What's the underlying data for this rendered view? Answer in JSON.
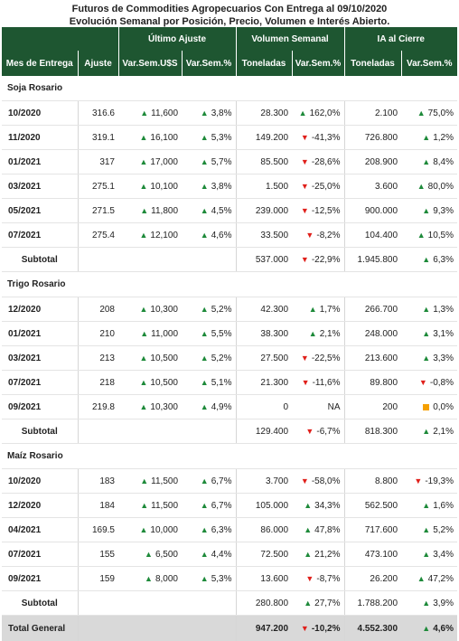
{
  "title": {
    "line1": "Futuros de Commodities Agropecuarios Con Entrega al 09/10/2020",
    "line2": "Evolución Semanal por Posición, Precio, Volumen e Interés Abierto."
  },
  "groups": {
    "ultimo_ajuste": "Último Ajuste",
    "volumen_semanal": "Volumen Semanal",
    "ia_cierre": "IA al Cierre"
  },
  "columns": {
    "mes": "Mes de Entrega",
    "ajuste": "Ajuste",
    "var_usd": "Var.Sem.U$S",
    "var_pct1": "Var.Sem.%",
    "toneladas1": "Toneladas",
    "var_pct2": "Var.Sem.%",
    "toneladas2": "Toneladas",
    "var_pct3": "Var.Sem.%"
  },
  "sections": [
    {
      "name": "Soja Rosario",
      "rows": [
        {
          "mes": "10/2020",
          "ajuste": "316.6",
          "var_usd": "11,600",
          "var_usd_dir": "up",
          "var_pct1": "3,8%",
          "var_pct1_dir": "up",
          "ton1": "28.300",
          "var_pct2": "162,0%",
          "var_pct2_dir": "up",
          "ton2": "2.100",
          "var_pct3": "75,0%",
          "var_pct3_dir": "up"
        },
        {
          "mes": "11/2020",
          "ajuste": "319.1",
          "var_usd": "16,100",
          "var_usd_dir": "up",
          "var_pct1": "5,3%",
          "var_pct1_dir": "up",
          "ton1": "149.200",
          "var_pct2": "-41,3%",
          "var_pct2_dir": "down",
          "ton2": "726.800",
          "var_pct3": "1,2%",
          "var_pct3_dir": "up"
        },
        {
          "mes": "01/2021",
          "ajuste": "317",
          "var_usd": "17,000",
          "var_usd_dir": "up",
          "var_pct1": "5,7%",
          "var_pct1_dir": "up",
          "ton1": "85.500",
          "var_pct2": "-28,6%",
          "var_pct2_dir": "down",
          "ton2": "208.900",
          "var_pct3": "8,4%",
          "var_pct3_dir": "up"
        },
        {
          "mes": "03/2021",
          "ajuste": "275.1",
          "var_usd": "10,100",
          "var_usd_dir": "up",
          "var_pct1": "3,8%",
          "var_pct1_dir": "up",
          "ton1": "1.500",
          "var_pct2": "-25,0%",
          "var_pct2_dir": "down",
          "ton2": "3.600",
          "var_pct3": "80,0%",
          "var_pct3_dir": "up"
        },
        {
          "mes": "05/2021",
          "ajuste": "271.5",
          "var_usd": "11,800",
          "var_usd_dir": "up",
          "var_pct1": "4,5%",
          "var_pct1_dir": "up",
          "ton1": "239.000",
          "var_pct2": "-12,5%",
          "var_pct2_dir": "down",
          "ton2": "900.000",
          "var_pct3": "9,3%",
          "var_pct3_dir": "up"
        },
        {
          "mes": "07/2021",
          "ajuste": "275.4",
          "var_usd": "12,100",
          "var_usd_dir": "up",
          "var_pct1": "4,6%",
          "var_pct1_dir": "up",
          "ton1": "33.500",
          "var_pct2": "-8,2%",
          "var_pct2_dir": "down",
          "ton2": "104.400",
          "var_pct3": "10,5%",
          "var_pct3_dir": "up"
        }
      ],
      "subtotal": {
        "label": "Subtotal",
        "ton1": "537.000",
        "var_pct2": "-22,9%",
        "var_pct2_dir": "down",
        "ton2": "1.945.800",
        "var_pct3": "6,3%",
        "var_pct3_dir": "up"
      }
    },
    {
      "name": "Trigo Rosario",
      "rows": [
        {
          "mes": "12/2020",
          "ajuste": "208",
          "var_usd": "10,300",
          "var_usd_dir": "up",
          "var_pct1": "5,2%",
          "var_pct1_dir": "up",
          "ton1": "42.300",
          "var_pct2": "1,7%",
          "var_pct2_dir": "up",
          "ton2": "266.700",
          "var_pct3": "1,3%",
          "var_pct3_dir": "up"
        },
        {
          "mes": "01/2021",
          "ajuste": "210",
          "var_usd": "11,000",
          "var_usd_dir": "up",
          "var_pct1": "5,5%",
          "var_pct1_dir": "up",
          "ton1": "38.300",
          "var_pct2": "2,1%",
          "var_pct2_dir": "up",
          "ton2": "248.000",
          "var_pct3": "3,1%",
          "var_pct3_dir": "up"
        },
        {
          "mes": "03/2021",
          "ajuste": "213",
          "var_usd": "10,500",
          "var_usd_dir": "up",
          "var_pct1": "5,2%",
          "var_pct1_dir": "up",
          "ton1": "27.500",
          "var_pct2": "-22,5%",
          "var_pct2_dir": "down",
          "ton2": "213.600",
          "var_pct3": "3,3%",
          "var_pct3_dir": "up"
        },
        {
          "mes": "07/2021",
          "ajuste": "218",
          "var_usd": "10,500",
          "var_usd_dir": "up",
          "var_pct1": "5,1%",
          "var_pct1_dir": "up",
          "ton1": "21.300",
          "var_pct2": "-11,6%",
          "var_pct2_dir": "down",
          "ton2": "89.800",
          "var_pct3": "-0,8%",
          "var_pct3_dir": "down"
        },
        {
          "mes": "09/2021",
          "ajuste": "219.8",
          "var_usd": "10,300",
          "var_usd_dir": "up",
          "var_pct1": "4,9%",
          "var_pct1_dir": "up",
          "ton1": "0",
          "var_pct2": "NA",
          "var_pct2_dir": "none",
          "ton2": "200",
          "var_pct3": "0,0%",
          "var_pct3_dir": "flat"
        }
      ],
      "subtotal": {
        "label": "Subtotal",
        "ton1": "129.400",
        "var_pct2": "-6,7%",
        "var_pct2_dir": "down",
        "ton2": "818.300",
        "var_pct3": "2,1%",
        "var_pct3_dir": "up"
      }
    },
    {
      "name": "Maíz Rosario",
      "rows": [
        {
          "mes": "10/2020",
          "ajuste": "183",
          "var_usd": "11,500",
          "var_usd_dir": "up",
          "var_pct1": "6,7%",
          "var_pct1_dir": "up",
          "ton1": "3.700",
          "var_pct2": "-58,0%",
          "var_pct2_dir": "down",
          "ton2": "8.800",
          "var_pct3": "-19,3%",
          "var_pct3_dir": "down"
        },
        {
          "mes": "12/2020",
          "ajuste": "184",
          "var_usd": "11,500",
          "var_usd_dir": "up",
          "var_pct1": "6,7%",
          "var_pct1_dir": "up",
          "ton1": "105.000",
          "var_pct2": "34,3%",
          "var_pct2_dir": "up",
          "ton2": "562.500",
          "var_pct3": "1,6%",
          "var_pct3_dir": "up"
        },
        {
          "mes": "04/2021",
          "ajuste": "169.5",
          "var_usd": "10,000",
          "var_usd_dir": "up",
          "var_pct1": "6,3%",
          "var_pct1_dir": "up",
          "ton1": "86.000",
          "var_pct2": "47,8%",
          "var_pct2_dir": "up",
          "ton2": "717.600",
          "var_pct3": "5,2%",
          "var_pct3_dir": "up"
        },
        {
          "mes": "07/2021",
          "ajuste": "155",
          "var_usd": "6,500",
          "var_usd_dir": "up",
          "var_pct1": "4,4%",
          "var_pct1_dir": "up",
          "ton1": "72.500",
          "var_pct2": "21,2%",
          "var_pct2_dir": "up",
          "ton2": "473.100",
          "var_pct3": "3,4%",
          "var_pct3_dir": "up"
        },
        {
          "mes": "09/2021",
          "ajuste": "159",
          "var_usd": "8,000",
          "var_usd_dir": "up",
          "var_pct1": "5,3%",
          "var_pct1_dir": "up",
          "ton1": "13.600",
          "var_pct2": "-8,7%",
          "var_pct2_dir": "down",
          "ton2": "26.200",
          "var_pct3": "47,2%",
          "var_pct3_dir": "up"
        }
      ],
      "subtotal": {
        "label": "Subtotal",
        "ton1": "280.800",
        "var_pct2": "27,7%",
        "var_pct2_dir": "up",
        "ton2": "1.788.200",
        "var_pct3": "3,9%",
        "var_pct3_dir": "up"
      }
    }
  ],
  "total": {
    "label": "Total General",
    "ton1": "947.200",
    "var_pct2": "-10,2%",
    "var_pct2_dir": "down",
    "ton2": "4.552.300",
    "var_pct3": "4,6%",
    "var_pct3_dir": "up"
  },
  "colors": {
    "header_bg": "#1e5631",
    "up": "#1e8a3a",
    "down": "#e0201b",
    "flat": "#f5a000",
    "total_bg": "#d9d9d9"
  }
}
